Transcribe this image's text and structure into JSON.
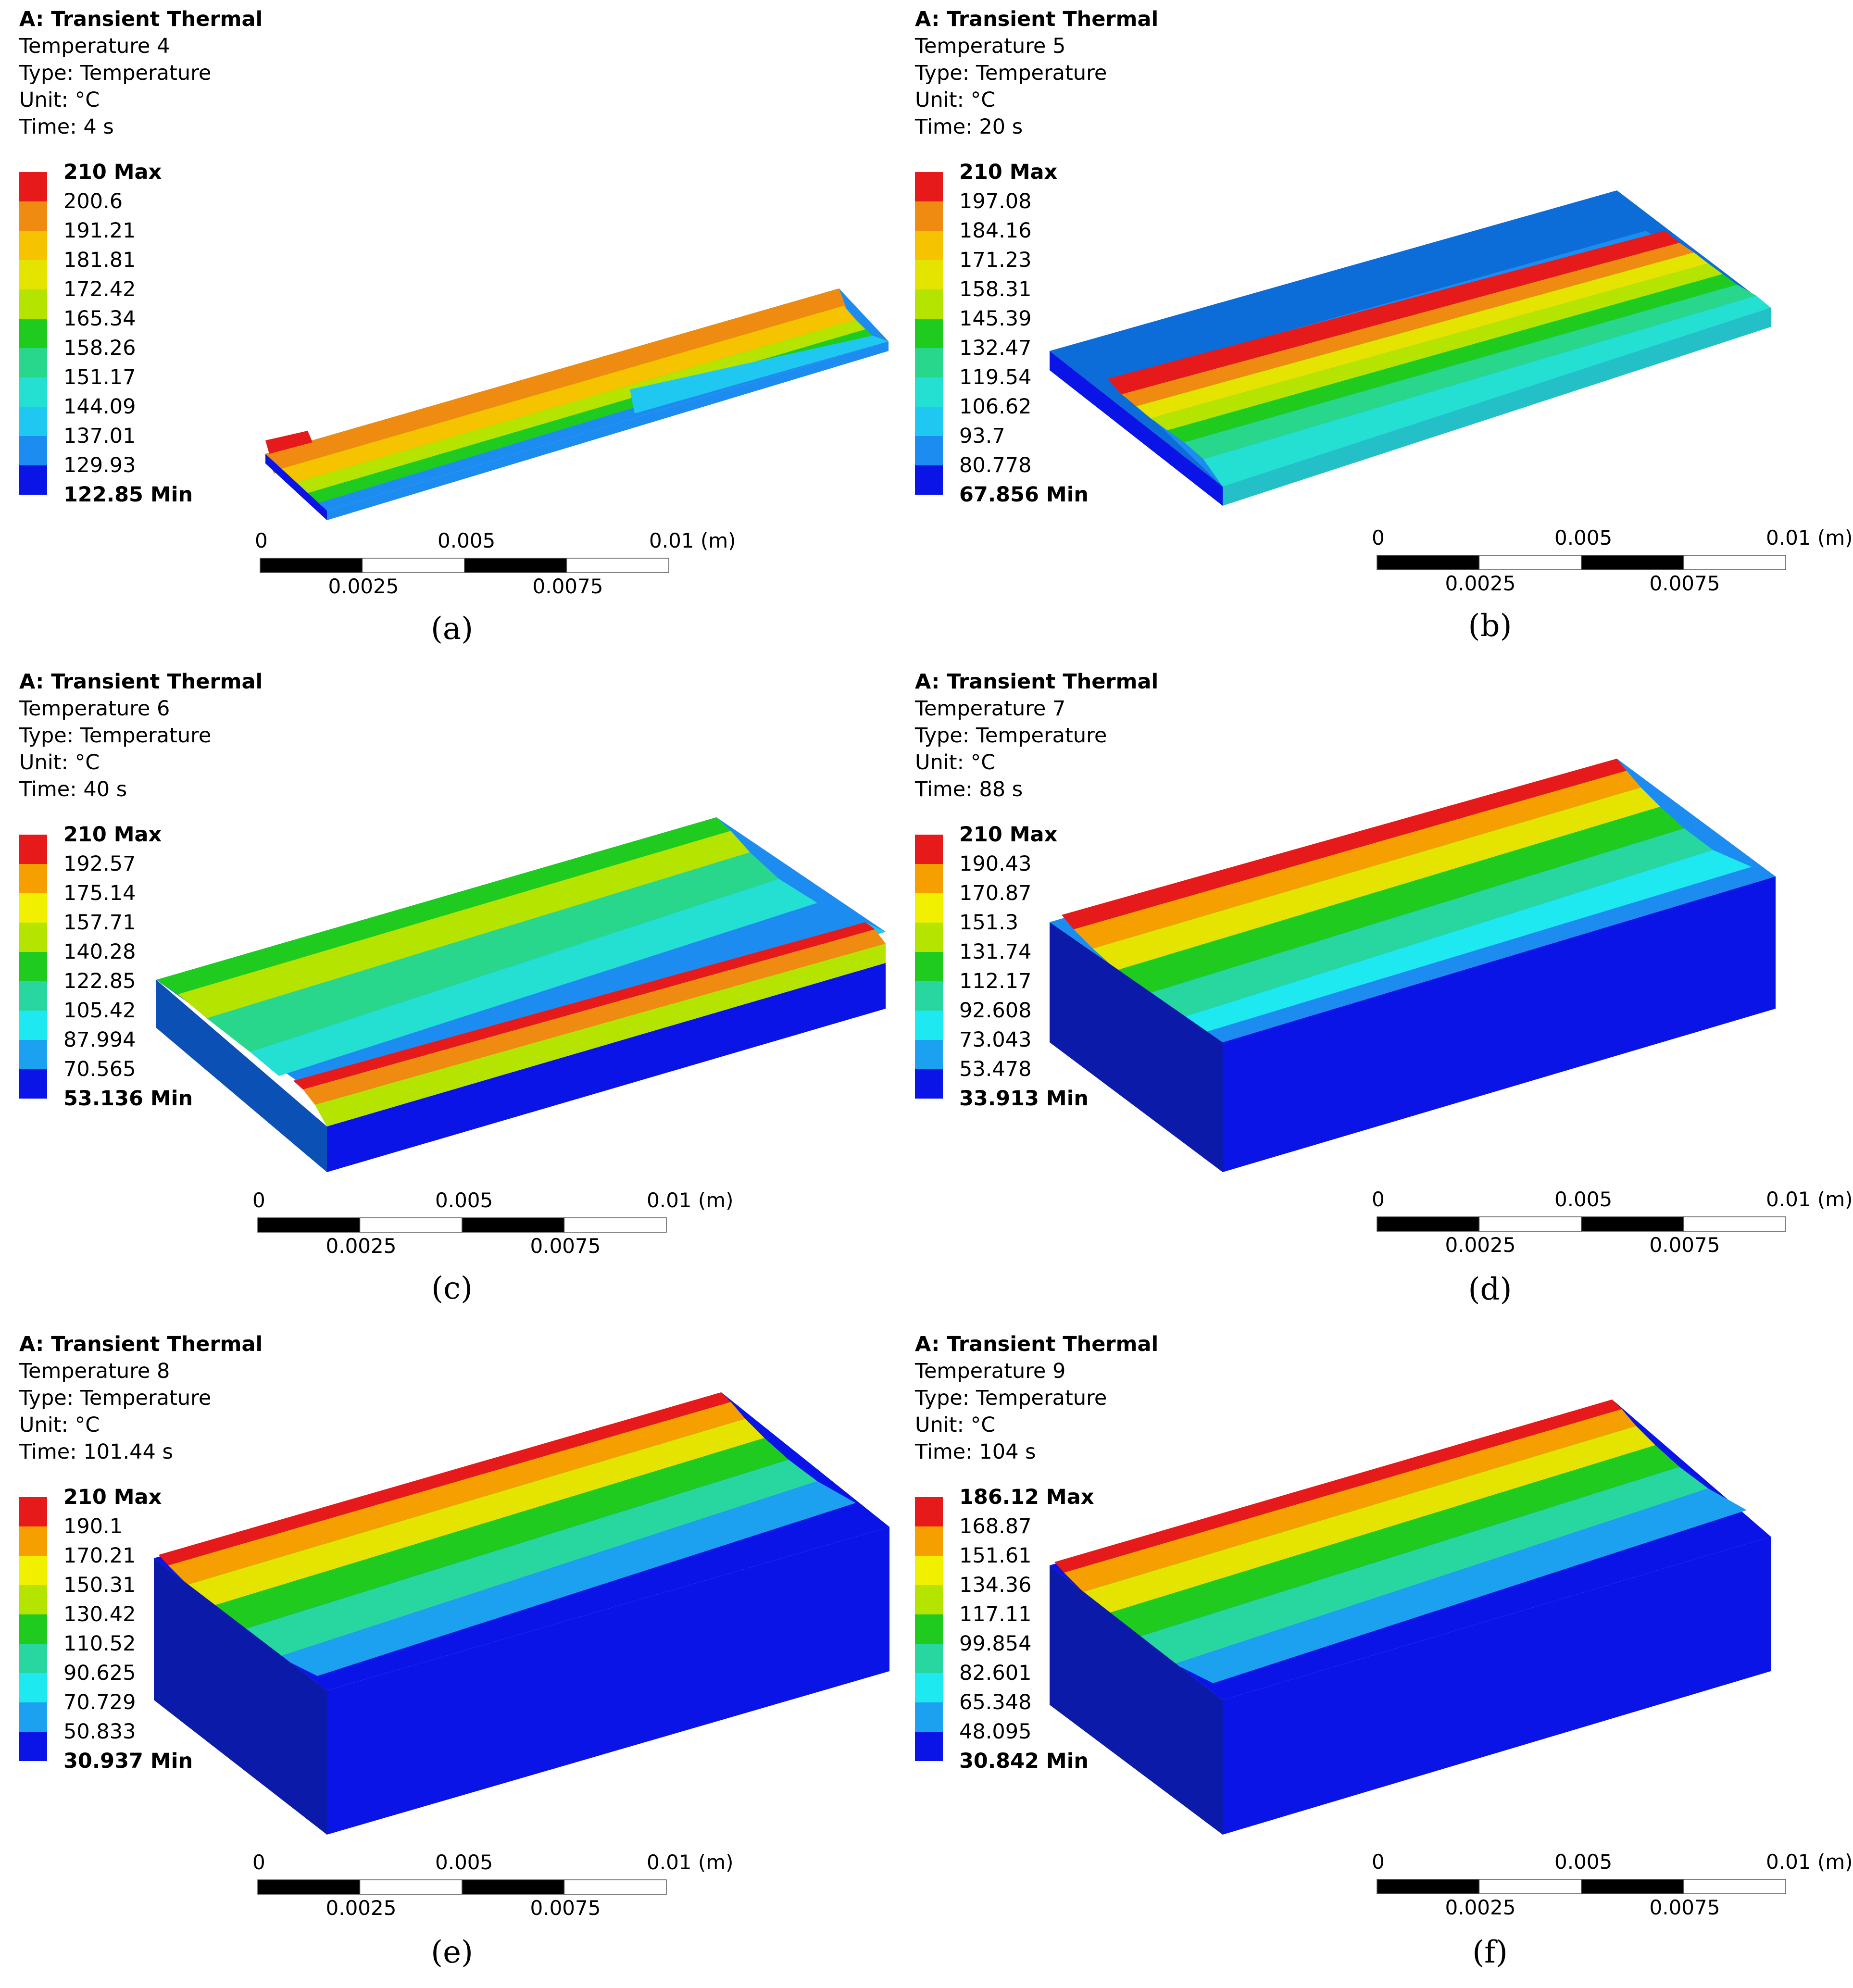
{
  "panels": [
    {
      "id": "a",
      "header": {
        "analysis": "A: Transient Thermal",
        "result": "Temperature 4",
        "type": "Type: Temperature",
        "unit": "Unit: °C",
        "time": "Time: 4 s"
      },
      "legend": [
        "210 Max",
        "200.6",
        "191.21",
        "181.81",
        "172.42",
        "165.34",
        "158.26",
        "151.17",
        "144.09",
        "137.01",
        "129.93",
        "122.85 Min"
      ],
      "scale": {
        "ticks_top": [
          "0",
          "0.005",
          "0.01 (m)"
        ],
        "ticks_bottom": [
          "0.0025",
          "0.0075"
        ]
      },
      "caption": "(a)"
    },
    {
      "id": "b",
      "header": {
        "analysis": "A: Transient Thermal",
        "result": "Temperature 5",
        "type": "Type: Temperature",
        "unit": "Unit: °C",
        "time": "Time: 20 s"
      },
      "legend": [
        "210 Max",
        "197.08",
        "184.16",
        "171.23",
        "158.31",
        "145.39",
        "132.47",
        "119.54",
        "106.62",
        "93.7",
        "80.778",
        "67.856 Min"
      ],
      "scale": {
        "ticks_top": [
          "0",
          "0.005",
          "0.01 (m)"
        ],
        "ticks_bottom": [
          "0.0025",
          "0.0075"
        ]
      },
      "caption": "(b)"
    },
    {
      "id": "c",
      "header": {
        "analysis": "A: Transient Thermal",
        "result": "Temperature 6",
        "type": "Type: Temperature",
        "unit": "Unit: °C",
        "time": "Time: 40 s"
      },
      "legend": [
        "210 Max",
        "192.57",
        "175.14",
        "157.71",
        "140.28",
        "122.85",
        "105.42",
        "87.994",
        "70.565",
        "53.136 Min"
      ],
      "scale": {
        "ticks_top": [
          "0",
          "0.005",
          "0.01 (m)"
        ],
        "ticks_bottom": [
          "0.0025",
          "0.0075"
        ]
      },
      "caption": "(c)"
    },
    {
      "id": "d",
      "header": {
        "analysis": "A: Transient Thermal",
        "result": "Temperature 7",
        "type": "Type: Temperature",
        "unit": "Unit: °C",
        "time": "Time: 88 s"
      },
      "legend": [
        "210 Max",
        "190.43",
        "170.87",
        "151.3",
        "131.74",
        "112.17",
        "92.608",
        "73.043",
        "53.478",
        "33.913 Min"
      ],
      "scale": {
        "ticks_top": [
          "0",
          "0.005",
          "0.01 (m)"
        ],
        "ticks_bottom": [
          "0.0025",
          "0.0075"
        ]
      },
      "caption": "(d)"
    },
    {
      "id": "e",
      "header": {
        "analysis": "A: Transient Thermal",
        "result": "Temperature 8",
        "type": "Type: Temperature",
        "unit": "Unit: °C",
        "time": "Time: 101.44 s"
      },
      "legend": [
        "210 Max",
        "190.1",
        "170.21",
        "150.31",
        "130.42",
        "110.52",
        "90.625",
        "70.729",
        "50.833",
        "30.937 Min"
      ],
      "scale": {
        "ticks_top": [
          "0",
          "0.005",
          "0.01 (m)"
        ],
        "ticks_bottom": [
          "0.0025",
          "0.0075"
        ]
      },
      "caption": "(e)"
    },
    {
      "id": "f",
      "header": {
        "analysis": "A: Transient Thermal",
        "result": "Temperature 9",
        "type": "Type: Temperature",
        "unit": "Unit: °C",
        "time": "Time: 104 s"
      },
      "legend": [
        "186.12 Max",
        "168.87",
        "151.61",
        "134.36",
        "117.11",
        "99.854",
        "82.601",
        "65.348",
        "48.095",
        "30.842 Min"
      ],
      "scale": {
        "ticks_top": [
          "0",
          "0.005",
          "0.01 (m)"
        ],
        "ticks_bottom": [
          "0.0025",
          "0.0075"
        ]
      },
      "caption": "(f)"
    }
  ],
  "colors": {
    "legend_11": [
      "#e61a1a",
      "#ef8b10",
      "#f5c300",
      "#e4e400",
      "#b4e400",
      "#1ecb1e",
      "#28d68c",
      "#23e0d2",
      "#1ec8f0",
      "#1c8cf0",
      "#0a14e6"
    ],
    "legend_9": [
      "#e61a1a",
      "#f5a000",
      "#f0f000",
      "#b4e400",
      "#1ecb1e",
      "#28d6a0",
      "#1ee8f0",
      "#1ca0f0",
      "#0a14e6"
    ],
    "bar_black": "#000000",
    "bar_white": "#ffffff"
  }
}
